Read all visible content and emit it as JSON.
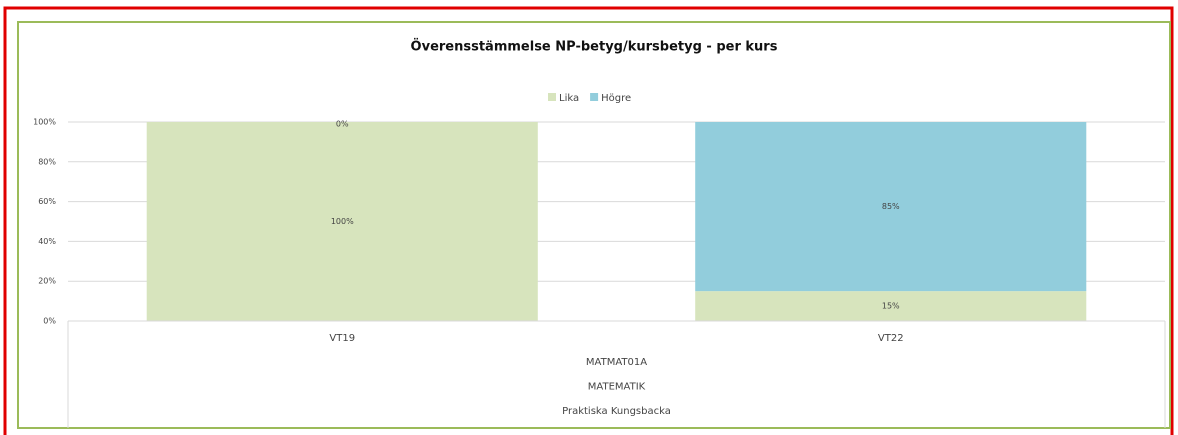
{
  "chart_data": {
    "type": "stacked_bar",
    "title": "Överensstämmelse NP-betyg/kursbetyg - per kurs",
    "categories": [
      "VT19",
      "VT22"
    ],
    "category_groups": [
      "MATMAT01A",
      "MATEMATIK",
      "Praktiska Kungsbacka"
    ],
    "series": [
      {
        "name": "Lika",
        "color": "#d7e4bd",
        "values": [
          100,
          15
        ],
        "value_labels": [
          "100%",
          "15%"
        ]
      },
      {
        "name": "Högre",
        "color": "#92cddc",
        "values": [
          0,
          85
        ],
        "value_labels": [
          "0%",
          "85%"
        ]
      }
    ],
    "ylim": [
      0,
      100
    ],
    "yticks": [
      {
        "value": 0,
        "label": "0%"
      },
      {
        "value": 20,
        "label": "20%"
      },
      {
        "value": 40,
        "label": "40%"
      },
      {
        "value": 60,
        "label": "60%"
      },
      {
        "value": 80,
        "label": "80%"
      },
      {
        "value": 100,
        "label": "100%"
      }
    ],
    "grid": true,
    "legend": "top"
  }
}
